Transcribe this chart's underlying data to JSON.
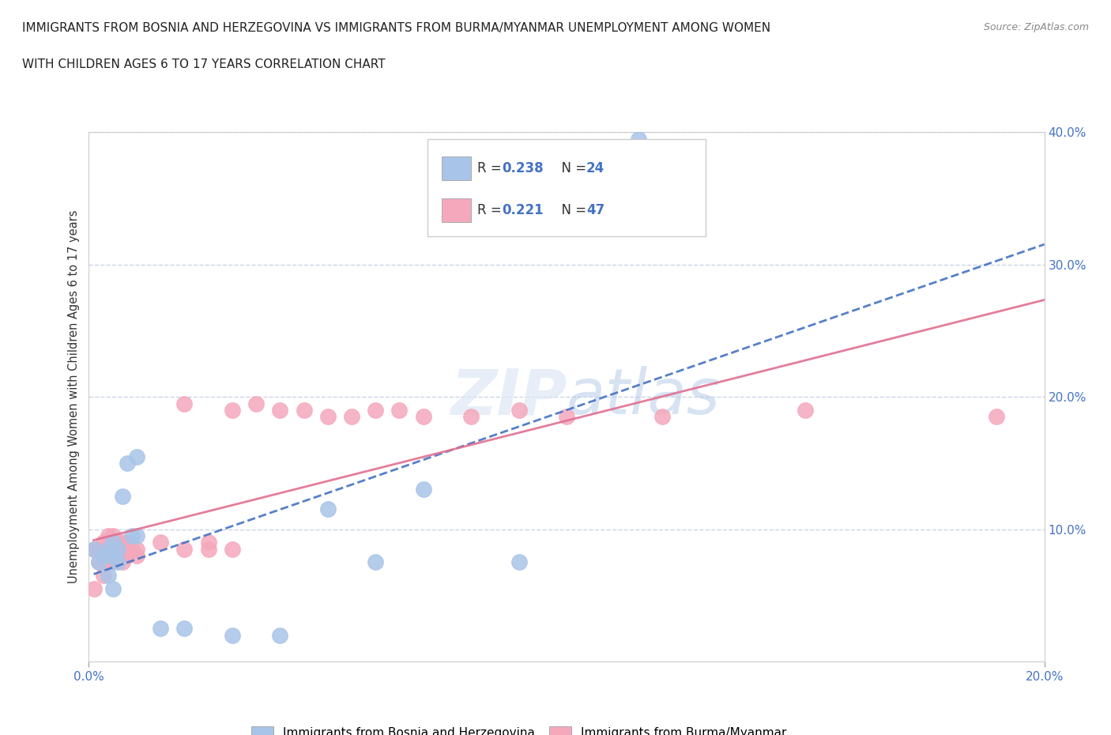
{
  "title_line1": "IMMIGRANTS FROM BOSNIA AND HERZEGOVINA VS IMMIGRANTS FROM BURMA/MYANMAR UNEMPLOYMENT AMONG WOMEN",
  "title_line2": "WITH CHILDREN AGES 6 TO 17 YEARS CORRELATION CHART",
  "source": "Source: ZipAtlas.com",
  "ylabel": "Unemployment Among Women with Children Ages 6 to 17 years",
  "xlim": [
    0.0,
    0.2
  ],
  "ylim": [
    0.0,
    0.4
  ],
  "xticks": [
    0.0,
    0.2
  ],
  "xticklabels": [
    "0.0%",
    "20.0%"
  ],
  "yticks": [
    0.1,
    0.2,
    0.3,
    0.4
  ],
  "yticklabels": [
    "10.0%",
    "20.0%",
    "30.0%",
    "40.0%"
  ],
  "bosnia_R": 0.238,
  "bosnia_N": 24,
  "burma_R": 0.221,
  "burma_N": 47,
  "bosnia_color": "#a8c4e8",
  "burma_color": "#f5a8bc",
  "bosnia_line_color": "#4472c4",
  "burma_line_color": "#e07090",
  "bosnia_x": [
    0.001,
    0.002,
    0.003,
    0.004,
    0.004,
    0.005,
    0.005,
    0.005,
    0.006,
    0.006,
    0.007,
    0.008,
    0.009,
    0.01,
    0.01,
    0.015,
    0.02,
    0.03,
    0.04,
    0.05,
    0.06,
    0.07,
    0.09,
    0.115
  ],
  "bosnia_y": [
    0.085,
    0.075,
    0.08,
    0.085,
    0.065,
    0.08,
    0.09,
    0.055,
    0.075,
    0.085,
    0.125,
    0.15,
    0.095,
    0.155,
    0.095,
    0.025,
    0.025,
    0.02,
    0.02,
    0.115,
    0.075,
    0.13,
    0.075,
    0.395
  ],
  "burma_x": [
    0.001,
    0.001,
    0.002,
    0.002,
    0.003,
    0.003,
    0.003,
    0.004,
    0.004,
    0.004,
    0.005,
    0.005,
    0.005,
    0.005,
    0.005,
    0.006,
    0.006,
    0.006,
    0.007,
    0.007,
    0.007,
    0.008,
    0.008,
    0.009,
    0.01,
    0.01,
    0.015,
    0.02,
    0.02,
    0.025,
    0.025,
    0.03,
    0.03,
    0.035,
    0.04,
    0.045,
    0.05,
    0.055,
    0.06,
    0.065,
    0.07,
    0.08,
    0.09,
    0.1,
    0.12,
    0.15,
    0.19
  ],
  "burma_y": [
    0.085,
    0.055,
    0.075,
    0.085,
    0.08,
    0.09,
    0.065,
    0.075,
    0.085,
    0.095,
    0.08,
    0.085,
    0.09,
    0.075,
    0.095,
    0.08,
    0.085,
    0.09,
    0.075,
    0.085,
    0.09,
    0.08,
    0.09,
    0.085,
    0.08,
    0.085,
    0.09,
    0.085,
    0.195,
    0.085,
    0.09,
    0.085,
    0.19,
    0.195,
    0.19,
    0.19,
    0.185,
    0.185,
    0.19,
    0.19,
    0.185,
    0.185,
    0.19,
    0.185,
    0.185,
    0.19,
    0.185
  ],
  "legend_label_bosnia": "Immigrants from Bosnia and Herzegovina",
  "legend_label_burma": "Immigrants from Burma/Myanmar",
  "tick_color": "#4472c4",
  "grid_color": "#c8d4e8",
  "background_color": "#ffffff"
}
